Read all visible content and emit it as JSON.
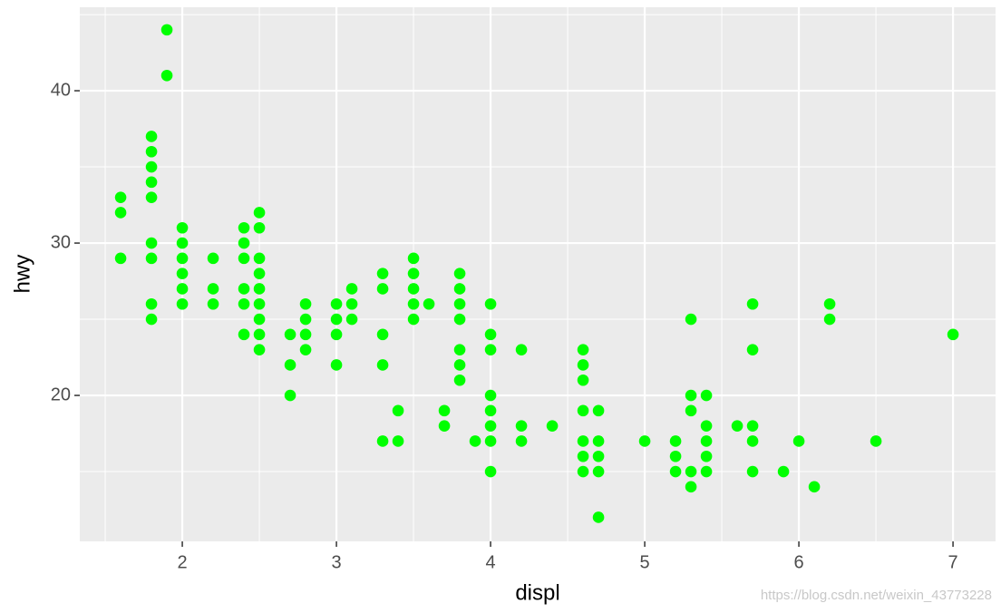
{
  "chart_data": {
    "type": "scatter",
    "x_label": "displ",
    "y_label": "hwy",
    "watermark": "https://blog.csdn.net/weixin_43773228",
    "color": "#00ff00",
    "x": [
      1.6,
      1.6,
      1.6,
      1.8,
      1.8,
      1.8,
      1.8,
      1.8,
      1.8,
      1.8,
      1.8,
      1.8,
      1.9,
      1.9,
      2.0,
      2.0,
      2.0,
      2.0,
      2.0,
      2.0,
      2.2,
      2.2,
      2.2,
      2.4,
      2.4,
      2.4,
      2.4,
      2.4,
      2.4,
      2.5,
      2.5,
      2.5,
      2.5,
      2.5,
      2.5,
      2.5,
      2.5,
      2.5,
      2.7,
      2.7,
      2.7,
      2.8,
      2.8,
      2.8,
      2.8,
      3.0,
      3.0,
      3.0,
      3.0,
      3.1,
      3.1,
      3.1,
      3.3,
      3.3,
      3.3,
      3.3,
      3.3,
      3.4,
      3.4,
      3.5,
      3.5,
      3.5,
      3.5,
      3.5,
      3.6,
      3.7,
      3.7,
      3.8,
      3.8,
      3.8,
      3.8,
      3.8,
      3.8,
      3.8,
      3.9,
      4.0,
      4.0,
      4.0,
      4.0,
      4.0,
      4.0,
      4.0,
      4.0,
      4.2,
      4.2,
      4.2,
      4.4,
      4.6,
      4.6,
      4.6,
      4.6,
      4.6,
      4.6,
      4.6,
      4.7,
      4.7,
      4.7,
      4.7,
      4.7,
      5.0,
      5.2,
      5.2,
      5.2,
      5.3,
      5.3,
      5.3,
      5.3,
      5.3,
      5.4,
      5.4,
      5.4,
      5.4,
      5.4,
      5.6,
      5.7,
      5.7,
      5.7,
      5.7,
      5.7,
      5.9,
      6.0,
      6.1,
      6.2,
      6.2,
      6.5,
      7.0
    ],
    "values": [
      33,
      32,
      29,
      37,
      36,
      35,
      34,
      33,
      30,
      29,
      26,
      25,
      44,
      41,
      31,
      30,
      29,
      28,
      27,
      26,
      29,
      27,
      26,
      31,
      30,
      29,
      27,
      26,
      24,
      32,
      31,
      29,
      28,
      27,
      26,
      25,
      24,
      23,
      24,
      22,
      20,
      26,
      25,
      24,
      23,
      26,
      25,
      24,
      22,
      27,
      26,
      25,
      28,
      27,
      24,
      22,
      17,
      19,
      17,
      29,
      28,
      27,
      26,
      25,
      26,
      19,
      18,
      28,
      27,
      26,
      25,
      23,
      22,
      21,
      17,
      26,
      24,
      23,
      20,
      19,
      18,
      17,
      15,
      23,
      18,
      17,
      18,
      23,
      22,
      21,
      19,
      17,
      16,
      15,
      19,
      17,
      16,
      15,
      12,
      17,
      17,
      16,
      15,
      25,
      20,
      19,
      15,
      14,
      20,
      18,
      17,
      16,
      15,
      18,
      26,
      23,
      18,
      17,
      15,
      15,
      17,
      14,
      26,
      25,
      17,
      24
    ],
    "xlim": [
      1.335,
      7.276
    ],
    "ylim": [
      10.42,
      45.48
    ],
    "xticks": [
      2,
      3,
      4,
      5,
      6,
      7
    ],
    "yticks": [
      20,
      30,
      40
    ],
    "x_minor_ticks": [
      1.5,
      2.5,
      3.5,
      4.5,
      5.5,
      6.5
    ],
    "y_minor_ticks": [
      15,
      25,
      35,
      45
    ],
    "grid": true
  }
}
